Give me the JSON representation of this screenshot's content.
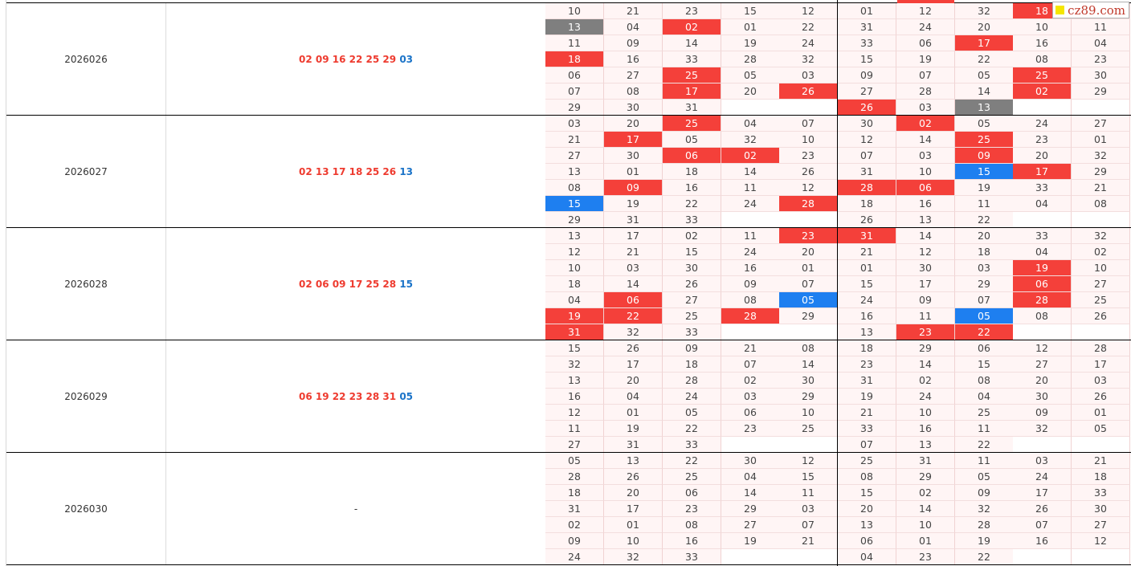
{
  "watermark": {
    "text": "cz89.com"
  },
  "colors": {
    "red_hit": "#f4403a",
    "blue_hit": "#1e7ff0",
    "gray_hit": "#7f7f7f",
    "cell_bg": "#fff5f5"
  },
  "periods": [
    {
      "issue": "2026026",
      "red": [
        "02",
        "09",
        "16",
        "22",
        "25",
        "29"
      ],
      "blue": "03",
      "left": [
        [
          "10",
          "21",
          "23",
          "15",
          "12"
        ],
        [
          "13",
          "04",
          "02",
          "01",
          "22"
        ],
        [
          "11",
          "09",
          "14",
          "19",
          "24"
        ],
        [
          "18",
          "16",
          "33",
          "28",
          "32"
        ],
        [
          "06",
          "27",
          "25",
          "05",
          "03"
        ],
        [
          "07",
          "08",
          "17",
          "20",
          "26"
        ],
        [
          "29",
          "30",
          "31",
          "",
          ""
        ]
      ],
      "right": [
        [
          "01",
          "12",
          "32",
          "18",
          "20"
        ],
        [
          "31",
          "24",
          "20",
          "10",
          "11"
        ],
        [
          "33",
          "06",
          "17",
          "16",
          "04"
        ],
        [
          "15",
          "19",
          "22",
          "08",
          "23"
        ],
        [
          "09",
          "07",
          "05",
          "25",
          "30"
        ],
        [
          "27",
          "28",
          "14",
          "02",
          "29"
        ],
        [
          "26",
          "03",
          "13",
          "",
          ""
        ]
      ]
    },
    {
      "issue": "2026027",
      "red": [
        "02",
        "13",
        "17",
        "18",
        "25",
        "26"
      ],
      "blue": "13",
      "left": [
        [
          "03",
          "20",
          "25",
          "04",
          "07"
        ],
        [
          "21",
          "17",
          "05",
          "32",
          "10"
        ],
        [
          "27",
          "30",
          "06",
          "02",
          "23"
        ],
        [
          "13",
          "01",
          "18",
          "14",
          "26"
        ],
        [
          "08",
          "09",
          "16",
          "11",
          "12"
        ],
        [
          "15",
          "19",
          "22",
          "24",
          "28"
        ],
        [
          "29",
          "31",
          "33",
          "",
          ""
        ]
      ],
      "right": [
        [
          "30",
          "02",
          "05",
          "24",
          "27"
        ],
        [
          "12",
          "14",
          "25",
          "23",
          "01"
        ],
        [
          "07",
          "03",
          "09",
          "20",
          "32"
        ],
        [
          "31",
          "10",
          "15",
          "17",
          "29"
        ],
        [
          "28",
          "06",
          "19",
          "33",
          "21"
        ],
        [
          "18",
          "16",
          "11",
          "04",
          "08"
        ],
        [
          "26",
          "13",
          "22",
          "",
          ""
        ]
      ]
    },
    {
      "issue": "2026028",
      "red": [
        "02",
        "06",
        "09",
        "17",
        "25",
        "28"
      ],
      "blue": "15",
      "left": [
        [
          "13",
          "17",
          "02",
          "11",
          "23"
        ],
        [
          "12",
          "21",
          "15",
          "24",
          "20"
        ],
        [
          "10",
          "03",
          "30",
          "16",
          "01"
        ],
        [
          "18",
          "14",
          "26",
          "09",
          "07"
        ],
        [
          "04",
          "06",
          "27",
          "08",
          "05"
        ],
        [
          "19",
          "22",
          "25",
          "28",
          "29"
        ],
        [
          "31",
          "32",
          "33",
          "",
          ""
        ]
      ],
      "right": [
        [
          "31",
          "14",
          "20",
          "33",
          "32"
        ],
        [
          "21",
          "12",
          "18",
          "04",
          "02"
        ],
        [
          "01",
          "30",
          "03",
          "19",
          "10"
        ],
        [
          "15",
          "17",
          "29",
          "06",
          "27"
        ],
        [
          "24",
          "09",
          "07",
          "28",
          "25"
        ],
        [
          "16",
          "11",
          "05",
          "08",
          "26"
        ],
        [
          "13",
          "23",
          "22",
          "",
          ""
        ]
      ]
    },
    {
      "issue": "2026029",
      "red": [
        "06",
        "19",
        "22",
        "23",
        "28",
        "31"
      ],
      "blue": "05",
      "left": [
        [
          "15",
          "26",
          "09",
          "21",
          "08"
        ],
        [
          "32",
          "17",
          "18",
          "07",
          "14"
        ],
        [
          "13",
          "20",
          "28",
          "02",
          "30"
        ],
        [
          "16",
          "04",
          "24",
          "03",
          "29"
        ],
        [
          "12",
          "01",
          "05",
          "06",
          "10"
        ],
        [
          "11",
          "19",
          "22",
          "23",
          "25"
        ],
        [
          "27",
          "31",
          "33",
          "",
          ""
        ]
      ],
      "right": [
        [
          "18",
          "29",
          "06",
          "12",
          "28"
        ],
        [
          "23",
          "14",
          "15",
          "27",
          "17"
        ],
        [
          "31",
          "02",
          "08",
          "20",
          "03"
        ],
        [
          "19",
          "24",
          "04",
          "30",
          "26"
        ],
        [
          "21",
          "10",
          "25",
          "09",
          "01"
        ],
        [
          "33",
          "16",
          "11",
          "32",
          "05"
        ],
        [
          "07",
          "13",
          "22",
          "",
          ""
        ]
      ]
    },
    {
      "issue": "2026030",
      "red": [],
      "blue": "",
      "pending": "-",
      "left": [
        [
          "05",
          "13",
          "22",
          "30",
          "12"
        ],
        [
          "28",
          "26",
          "25",
          "04",
          "15"
        ],
        [
          "18",
          "20",
          "06",
          "14",
          "11"
        ],
        [
          "31",
          "17",
          "23",
          "29",
          "03"
        ],
        [
          "02",
          "01",
          "08",
          "27",
          "07"
        ],
        [
          "09",
          "10",
          "16",
          "19",
          "21"
        ],
        [
          "24",
          "32",
          "33",
          "",
          ""
        ]
      ],
      "right": [
        [
          "25",
          "31",
          "11",
          "03",
          "21"
        ],
        [
          "08",
          "29",
          "05",
          "24",
          "18"
        ],
        [
          "15",
          "02",
          "09",
          "17",
          "33"
        ],
        [
          "20",
          "14",
          "32",
          "26",
          "30"
        ],
        [
          "13",
          "10",
          "28",
          "07",
          "27"
        ],
        [
          "06",
          "01",
          "19",
          "16",
          "12"
        ],
        [
          "04",
          "23",
          "22",
          "",
          ""
        ]
      ]
    }
  ]
}
